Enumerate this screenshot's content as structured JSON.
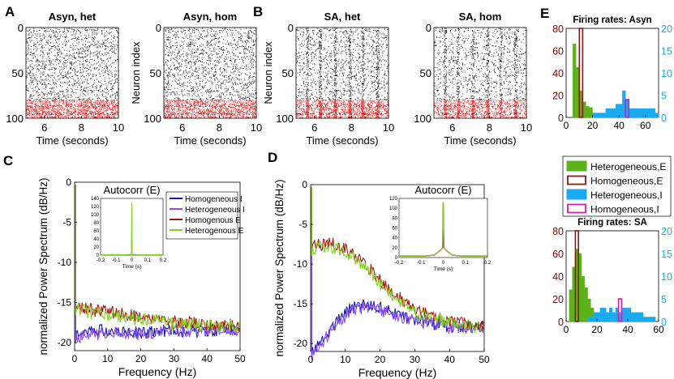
{
  "colors": {
    "excitatory": "#000000",
    "inhibitory": "#dd0000",
    "homogeneous_I": "#1a1aa6",
    "heterogeneous_I": "#8a4cf5",
    "homogeneous_E": "#aa1111",
    "heterogeneous_E": "#7ed321",
    "hist_het_E": "#5cb21a",
    "hist_hom_E": "#8a1a1a",
    "hist_het_I": "#1aaaf0",
    "hist_hom_I": "#d020b0",
    "left_axis": "#8b0000",
    "right_axis": "#1aaaf0"
  },
  "panels": {
    "A": "A",
    "B": "B",
    "C": "C",
    "D": "D",
    "E": "E"
  },
  "chart_data": [
    {
      "id": "raster-asyn-het",
      "type": "scatter",
      "title": "Asyn, het",
      "xlabel": "Time (seconds)",
      "ylabel": "",
      "xlim": [
        5,
        10
      ],
      "ylim": [
        0,
        100
      ],
      "xticks": [
        "6",
        "8",
        "10"
      ],
      "yticks": [
        "0",
        "50",
        "100"
      ],
      "inhibitory_from_index": 80,
      "neurons": 100,
      "description_density": 1.2
    },
    {
      "id": "raster-asyn-hom",
      "type": "scatter",
      "title": "Asyn, hom",
      "xlabel": "Time (seconds)",
      "ylabel": "Neuron index",
      "xlim": [
        5,
        10
      ],
      "ylim": [
        0,
        100
      ],
      "xticks": [
        "6",
        "8",
        "10"
      ],
      "yticks": [
        "0",
        "50",
        "100"
      ],
      "inhibitory_from_index": 80,
      "neurons": 100,
      "description_density": 1.1
    },
    {
      "id": "raster-sa-het",
      "type": "scatter",
      "title": "SA, het",
      "xlabel": "Time (seconds)",
      "ylabel": "Neuron index",
      "xlim": [
        5,
        10
      ],
      "ylim": [
        0,
        100
      ],
      "xticks": [
        "6",
        "8",
        "10"
      ],
      "yticks": [
        "0",
        "50",
        "100"
      ],
      "inhibitory_from_index": 80,
      "neurons": 100,
      "description_density": 1.3
    },
    {
      "id": "raster-sa-hom",
      "type": "scatter",
      "title": "SA, hom",
      "xlabel": "Time (seconds)",
      "ylabel": "",
      "xlim": [
        5,
        10
      ],
      "ylim": [
        0,
        100
      ],
      "xticks": [
        "6",
        "8",
        "10"
      ],
      "yticks": [
        "0",
        "50",
        "100"
      ],
      "inhibitory_from_index": 80,
      "neurons": 100,
      "description_density": 1.1
    },
    {
      "id": "spectrum-asyn",
      "type": "line",
      "xlabel": "Frequency (Hz)",
      "ylabel": "normalized Power Spectrum (dB/Hz)",
      "xlim": [
        0,
        50
      ],
      "ylim": [
        -21,
        0
      ],
      "xticks": [
        "0",
        "10",
        "20",
        "30",
        "40",
        "50"
      ],
      "yticks": [
        "0",
        "-5",
        "-10",
        "-15",
        "-20"
      ],
      "legend": [
        "Homogeneous I",
        "Heterogeneous I",
        "Homogenous E",
        "Heterogenous E"
      ],
      "series": [
        {
          "name": "Homogeneous I",
          "x": [
            1,
            5,
            10,
            15,
            20,
            25,
            30,
            35,
            40,
            45,
            50
          ],
          "values": [
            -19,
            -18.6,
            -18.5,
            -18.7,
            -18.8,
            -18.6,
            -18.5,
            -18.6,
            -18.5,
            -18.3,
            -18.3
          ]
        },
        {
          "name": "Heterogeneous I",
          "x": [
            1,
            5,
            10,
            15,
            20,
            25,
            30,
            35,
            40,
            45,
            50
          ],
          "values": [
            -19.3,
            -18.9,
            -18.7,
            -18.9,
            -18.9,
            -18.7,
            -18.6,
            -18.6,
            -18.5,
            -18.2,
            -18.4
          ]
        },
        {
          "name": "Homogenous E",
          "x": [
            1,
            5,
            10,
            15,
            20,
            25,
            30,
            35,
            40,
            45,
            50
          ],
          "values": [
            -15.6,
            -15.9,
            -16.1,
            -16.5,
            -16.9,
            -17.2,
            -17.4,
            -17.5,
            -17.8,
            -17.8,
            -17.9
          ]
        },
        {
          "name": "Heterogenous E",
          "x": [
            1,
            5,
            10,
            15,
            20,
            25,
            30,
            35,
            40,
            45,
            50
          ],
          "values": [
            -15.8,
            -16.3,
            -16.5,
            -16.9,
            -17.1,
            -17.4,
            -17.6,
            -17.7,
            -17.9,
            -18,
            -18
          ]
        }
      ],
      "inset": {
        "title": "Autocorr (E)",
        "xlabel": "Time (s)",
        "xlim": [
          -0.2,
          0.2
        ],
        "ylim": [
          0,
          140
        ],
        "xticks": [
          "-0.2",
          "-0.1",
          "0",
          "0.1",
          "0.2"
        ],
        "yticks": [
          "0",
          "20",
          "40",
          "60",
          "80",
          "100",
          "120",
          "140"
        ],
        "x": [
          -0.2,
          -0.05,
          -0.01,
          -0.003,
          0,
          0.003,
          0.01,
          0.05,
          0.2
        ],
        "values": [
          1,
          1,
          1.5,
          3,
          128,
          3,
          1.5,
          1,
          1
        ]
      }
    },
    {
      "id": "spectrum-sa",
      "type": "line",
      "xlabel": "Frequency (Hz)",
      "ylabel": "normalized Power Spectrum (dB/Hz)",
      "xlim": [
        0,
        50
      ],
      "ylim": [
        -21,
        0
      ],
      "xticks": [
        "0",
        "10",
        "20",
        "30",
        "40",
        "50"
      ],
      "yticks": [
        "0",
        "-5",
        "-10",
        "-15",
        "-20"
      ],
      "series": [
        {
          "name": "Homogeneous I",
          "x": [
            1,
            3,
            6,
            9,
            12,
            15,
            18,
            21,
            25,
            30,
            35,
            40,
            45,
            50
          ],
          "values": [
            -21,
            -19.8,
            -18,
            -16.5,
            -15.5,
            -15.2,
            -15.3,
            -15.7,
            -16.4,
            -17.0,
            -17.5,
            -17.8,
            -17.9,
            -18
          ]
        },
        {
          "name": "Heterogeneous I",
          "x": [
            1,
            3,
            6,
            9,
            12,
            15,
            18,
            21,
            25,
            30,
            35,
            40,
            45,
            50
          ],
          "values": [
            -21.3,
            -20.1,
            -18.4,
            -16.9,
            -15.9,
            -15.5,
            -15.6,
            -15.9,
            -16.5,
            -17.1,
            -17.5,
            -17.9,
            -18,
            -18.1
          ]
        },
        {
          "name": "Homogenous E",
          "x": [
            1,
            3,
            6,
            9,
            12,
            15,
            18,
            21,
            25,
            30,
            35,
            40,
            45,
            50
          ],
          "values": [
            -7.8,
            -7.5,
            -7.4,
            -7.8,
            -8.6,
            -9.7,
            -11.0,
            -12.4,
            -14.0,
            -15.6,
            -16.6,
            -17.2,
            -17.6,
            -17.8
          ]
        },
        {
          "name": "Heterogenous E",
          "x": [
            1,
            3,
            6,
            9,
            12,
            15,
            18,
            21,
            25,
            30,
            35,
            40,
            45,
            50
          ],
          "values": [
            -8.1,
            -7.9,
            -7.9,
            -8.3,
            -9.1,
            -10.2,
            -11.5,
            -12.9,
            -14.5,
            -16.0,
            -16.9,
            -17.4,
            -17.8,
            -18.0
          ]
        }
      ],
      "inset": {
        "title": "Autocorr (E)",
        "xlabel": "Time (s)",
        "xlim": [
          -0.2,
          0.2
        ],
        "ylim": [
          0,
          120
        ],
        "xticks": [
          "-0.2",
          "-0.1",
          "0",
          "0.1",
          "0.2"
        ],
        "yticks": [
          "0",
          "20",
          "40",
          "60",
          "80",
          "100",
          "120"
        ],
        "x": [
          -0.2,
          -0.08,
          -0.04,
          -0.02,
          -0.01,
          -0.003,
          0,
          0.003,
          0.01,
          0.02,
          0.04,
          0.08,
          0.2
        ],
        "values": [
          3,
          3,
          5,
          12,
          16,
          20,
          112,
          20,
          16,
          12,
          5,
          3,
          3
        ]
      }
    },
    {
      "id": "rates-asyn",
      "type": "bar",
      "title": "Firing rates: Asyn",
      "xlim": [
        0,
        70
      ],
      "ylim_left": [
        0,
        80
      ],
      "ylim_right": [
        0,
        20
      ],
      "xticks": [
        "0",
        "20",
        "40",
        "60"
      ],
      "yticks_left": [
        "0",
        "20",
        "40",
        "60",
        "80"
      ],
      "yticks_right": [
        "0",
        "5",
        "10",
        "15",
        "20"
      ],
      "bin_width": 2.5,
      "het_E": {
        "bin_starts": [
          5,
          7.5,
          10,
          12.5,
          15,
          17.5,
          20
        ],
        "counts": [
          66,
          45,
          24,
          14,
          10,
          9,
          4
        ]
      },
      "hom_E": {
        "bin_starts": [
          10
        ],
        "counts": [
          80
        ]
      },
      "het_I": {
        "bin_starts": [
          20,
          22.5,
          25,
          27.5,
          30,
          32.5,
          35,
          37.5,
          40,
          42.5,
          45,
          47.5,
          50,
          52.5,
          55,
          57.5,
          60,
          62.5,
          65,
          67.5
        ],
        "counts": [
          1,
          1,
          1,
          1,
          2,
          2,
          2,
          3,
          3,
          6,
          4,
          2,
          2,
          2,
          2,
          2,
          2,
          2,
          2,
          1
        ]
      },
      "hom_I": {
        "bin_starts": [
          45
        ],
        "counts": [
          4
        ]
      }
    },
    {
      "id": "rates-sa",
      "type": "bar",
      "title": "Firing rates: SA",
      "xlim": [
        0,
        60
      ],
      "ylim_left": [
        0,
        80
      ],
      "ylim_right": [
        0,
        20
      ],
      "xticks": [
        "0",
        "20",
        "40",
        "60"
      ],
      "yticks_left": [
        "0",
        "20",
        "40",
        "60",
        "80"
      ],
      "yticks_right": [
        "0",
        "5",
        "10",
        "15",
        "20"
      ],
      "bin_width": 2,
      "het_E": {
        "bin_starts": [
          2,
          4,
          6,
          8,
          10,
          12,
          14,
          16,
          18
        ],
        "counts": [
          28,
          48,
          64,
          60,
          40,
          30,
          20,
          12,
          6
        ]
      },
      "hom_E": {
        "bin_starts": [
          6
        ],
        "counts": [
          80
        ]
      },
      "het_I": {
        "bin_starts": [
          14,
          16,
          18,
          20,
          22,
          24,
          26,
          28,
          30,
          32,
          34,
          36,
          38,
          40,
          42,
          44,
          46,
          48,
          50,
          52,
          54,
          56
        ],
        "counts": [
          1,
          1,
          2,
          2,
          3,
          3,
          2,
          3,
          2,
          3,
          2,
          3,
          3,
          3,
          2,
          2,
          2,
          2,
          1,
          1,
          1,
          1
        ]
      },
      "hom_I": {
        "bin_starts": [
          34
        ],
        "counts": [
          5
        ]
      }
    }
  ],
  "hist_legend": [
    {
      "label": "Heterogeneous,E",
      "style": "solid",
      "color": "#5cb21a"
    },
    {
      "label": "Homogeneous,E",
      "style": "outline",
      "color": "#8a1a1a"
    },
    {
      "label": "Heterogeneous,I",
      "style": "solid",
      "color": "#1aaaf0"
    },
    {
      "label": "Homogeneous,I",
      "style": "outline",
      "color": "#d020b0"
    }
  ]
}
